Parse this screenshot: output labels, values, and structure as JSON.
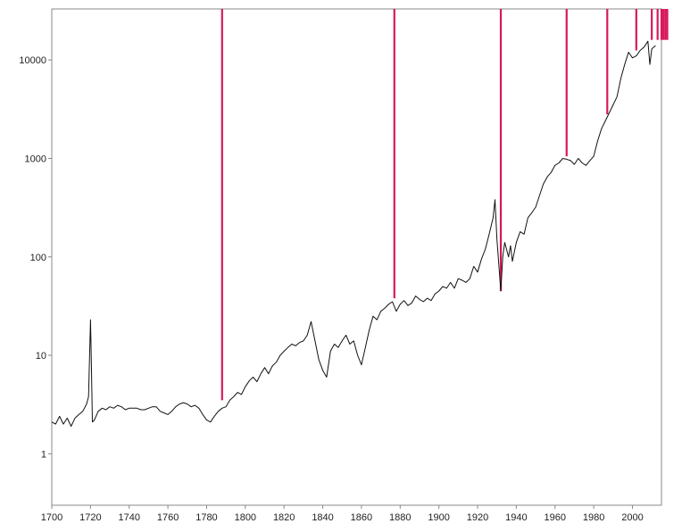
{
  "chart_data": {
    "type": "line",
    "title": "",
    "xlabel": "",
    "ylabel": "",
    "y_scale": "log",
    "xlim": [
      1700,
      2015
    ],
    "ylim": [
      0.3,
      33000
    ],
    "grid": false,
    "x_ticks": [
      1700,
      1720,
      1740,
      1760,
      1780,
      1800,
      1820,
      1840,
      1860,
      1880,
      1900,
      1920,
      1940,
      1960,
      1980,
      2000
    ],
    "x_tick_labels": [
      "1700",
      "1720",
      "1740",
      "1760",
      "1780",
      "1800",
      "1820",
      "1840",
      "1860",
      "1880",
      "1900",
      "1920",
      "1940",
      "1960",
      "1980",
      "2000"
    ],
    "y_ticks": [
      1,
      10,
      100,
      1000,
      10000
    ],
    "y_tick_labels": [
      "1",
      "10",
      "100",
      "1000",
      "10000"
    ],
    "line_color": "#111111",
    "marker_color": "#d6185a",
    "series": [
      {
        "x": [
          1700,
          1702,
          1704,
          1706,
          1708,
          1710,
          1712,
          1714,
          1716,
          1718,
          1719,
          1720,
          1720.5,
          1721,
          1722,
          1724,
          1726,
          1728,
          1730,
          1732,
          1734,
          1736,
          1738,
          1740,
          1742,
          1744,
          1746,
          1748,
          1750,
          1752,
          1754,
          1756,
          1758,
          1760,
          1762,
          1764,
          1766,
          1768,
          1770,
          1772,
          1774,
          1776,
          1778,
          1780,
          1782,
          1784,
          1786,
          1788,
          1790,
          1792,
          1794,
          1796,
          1798,
          1800,
          1802,
          1804,
          1806,
          1808,
          1810,
          1812,
          1814,
          1816,
          1818,
          1820,
          1822,
          1824,
          1826,
          1828,
          1830,
          1832,
          1834,
          1836,
          1838,
          1840,
          1842,
          1844,
          1846,
          1848,
          1850,
          1852,
          1854,
          1856,
          1858,
          1860,
          1862,
          1864,
          1866,
          1868,
          1870,
          1872,
          1874,
          1876,
          1878,
          1880,
          1882,
          1884,
          1886,
          1888,
          1890,
          1892,
          1894,
          1896,
          1898,
          1900,
          1902,
          1904,
          1906,
          1908,
          1910,
          1912,
          1914,
          1916,
          1918,
          1920,
          1922,
          1924,
          1926,
          1928,
          1929,
          1930,
          1932,
          1933,
          1934,
          1936,
          1937,
          1938,
          1940,
          1942,
          1944,
          1946,
          1948,
          1950,
          1952,
          1954,
          1956,
          1958,
          1960,
          1962,
          1964,
          1966,
          1968,
          1970,
          1972,
          1974,
          1976,
          1978,
          1980,
          1982,
          1984,
          1986,
          1988,
          1990,
          1992,
          1994,
          1996,
          1998,
          2000,
          2002,
          2004,
          2006,
          2008,
          2009,
          2010,
          2012
        ],
        "y": [
          2.1,
          2.0,
          2.4,
          2.0,
          2.3,
          1.9,
          2.3,
          2.5,
          2.7,
          3.2,
          3.8,
          23,
          8,
          2.1,
          2.2,
          2.7,
          2.9,
          2.8,
          3.0,
          2.9,
          3.1,
          3.0,
          2.8,
          2.9,
          2.9,
          2.9,
          2.8,
          2.8,
          2.9,
          3.0,
          3.0,
          2.7,
          2.6,
          2.5,
          2.7,
          3.0,
          3.2,
          3.3,
          3.2,
          3.0,
          3.1,
          2.9,
          2.5,
          2.2,
          2.1,
          2.4,
          2.7,
          2.9,
          3.0,
          3.5,
          3.8,
          4.2,
          4.0,
          4.8,
          5.5,
          6.0,
          5.4,
          6.5,
          7.5,
          6.5,
          7.8,
          8.5,
          10,
          11,
          12,
          13,
          12.5,
          13.5,
          14,
          16,
          22,
          14,
          9,
          7,
          6,
          11,
          13,
          12,
          14,
          16,
          13,
          14,
          10,
          8,
          12,
          18,
          25,
          23,
          28,
          30,
          33,
          35,
          28,
          33,
          36,
          32,
          34,
          40,
          37,
          35,
          38,
          36,
          42,
          45,
          50,
          48,
          55,
          48,
          60,
          58,
          55,
          60,
          80,
          70,
          95,
          120,
          170,
          250,
          380,
          150,
          45,
          100,
          140,
          100,
          130,
          90,
          140,
          180,
          170,
          250,
          280,
          320,
          420,
          550,
          650,
          720,
          850,
          900,
          1000,
          980,
          950,
          870,
          1000,
          900,
          850,
          950,
          1050,
          1500,
          2000,
          2400,
          2900,
          3500,
          4200,
          6500,
          9000,
          12000,
          10500,
          11000,
          12500,
          13500,
          15500,
          9000,
          13000,
          14000
        ]
      }
    ],
    "marker_years": [
      1788,
      1877,
      1932,
      1966,
      1987,
      2002,
      2010,
      2013,
      2015,
      2016,
      2017,
      2018
    ],
    "marker_bottom_values": [
      3.5,
      38,
      45,
      1050,
      2800,
      12500,
      16000,
      16000,
      16000,
      16000,
      16000,
      16000
    ]
  }
}
